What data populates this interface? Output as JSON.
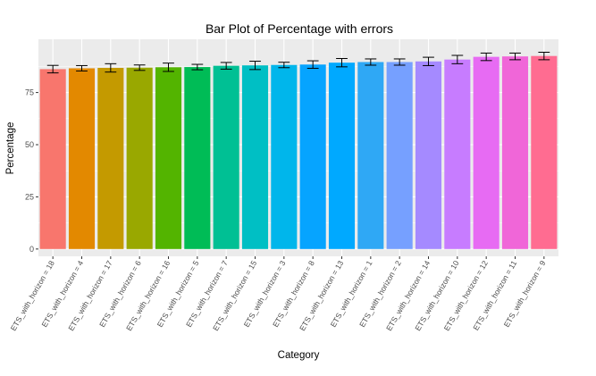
{
  "chart_data": {
    "type": "bar",
    "title": "Bar Plot of Percentage with errors",
    "xlabel": "Category",
    "ylabel": "Percentage",
    "ylim": [
      0,
      100
    ],
    "yticks": [
      0,
      25,
      50,
      75
    ],
    "grid": true,
    "legend": "none",
    "categories": [
      "ETS_with_horizon = 18",
      "ETS_with_horizon = 4",
      "ETS_with_horizon = 17",
      "ETS_with_horizon = 6",
      "ETS_with_horizon = 16",
      "ETS_with_horizon = 5",
      "ETS_with_horizon = 7",
      "ETS_with_horizon = 15",
      "ETS_with_horizon = 3",
      "ETS_with_horizon = 8",
      "ETS_with_horizon = 13",
      "ETS_with_horizon = 1",
      "ETS_with_horizon = 2",
      "ETS_with_horizon = 14",
      "ETS_with_horizon = 10",
      "ETS_with_horizon = 12",
      "ETS_with_horizon = 11",
      "ETS_with_horizon = 9"
    ],
    "values": [
      86.2,
      86.6,
      86.8,
      86.9,
      87.1,
      87.2,
      87.8,
      88.0,
      88.2,
      88.4,
      89.3,
      89.6,
      89.6,
      89.9,
      90.8,
      92.1,
      92.3,
      92.5
    ],
    "errors": [
      1.8,
      1.3,
      2.0,
      1.3,
      2.0,
      1.3,
      1.6,
      2.0,
      1.3,
      1.8,
      2.0,
      1.5,
      1.5,
      2.0,
      2.0,
      1.8,
      1.6,
      1.8
    ],
    "colors": [
      "#F8766D",
      "#E38900",
      "#C49A00",
      "#99A800",
      "#53B400",
      "#00BC56",
      "#00C094",
      "#00BFC4",
      "#00B6EB",
      "#06A4FF",
      "#00A9FF",
      "#2FA8F5",
      "#76A0FF",
      "#A58AFF",
      "#C77CFF",
      "#E76BF3",
      "#F066D8",
      "#FF6C91"
    ],
    "panel_background": "#EBEBEB",
    "gridline_color": "#FFFFFF"
  }
}
